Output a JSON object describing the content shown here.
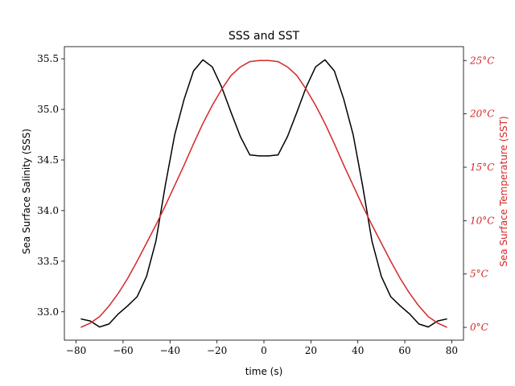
{
  "chart_data": {
    "type": "line",
    "title": "SSS and SST",
    "xlabel": "time (s)",
    "ylabel_left": "Sea Surface Salinity (SSS)",
    "ylabel_right": "Sea Surface Temperature (SST)",
    "xlim": [
      -85,
      85
    ],
    "ylim_left": [
      32.72,
      35.62
    ],
    "ylim_right": [
      -1.2,
      26.3
    ],
    "x_ticks": [
      -80,
      -60,
      -40,
      -20,
      0,
      20,
      40,
      60,
      80
    ],
    "x_tick_labels": [
      "−80",
      "−60",
      "−40",
      "−20",
      "0",
      "20",
      "40",
      "60",
      "80"
    ],
    "y_left_ticks": [
      33.0,
      33.5,
      34.0,
      34.5,
      35.0,
      35.5
    ],
    "y_left_tick_labels": [
      "33.0",
      "33.5",
      "34.0",
      "34.5",
      "35.0",
      "35.5"
    ],
    "y_right_ticks": [
      0,
      5,
      10,
      15,
      20,
      25
    ],
    "y_right_tick_labels": [
      "0°C",
      "5°C",
      "10°C",
      "15°C",
      "20°C",
      "25°C"
    ],
    "grid": false,
    "series": [
      {
        "axis": "left",
        "color": "#000000",
        "x": [
          -78,
          -74,
          -70,
          -66,
          -62,
          -58,
          -54,
          -50,
          -46,
          -42,
          -38,
          -34,
          -30,
          -26,
          -22,
          -18,
          -14,
          -10,
          -6,
          -2,
          2,
          6,
          10,
          14,
          18,
          22,
          26,
          30,
          34,
          38,
          42,
          46,
          50,
          54,
          58,
          62,
          66,
          70,
          74,
          78
        ],
        "values": [
          32.93,
          32.91,
          32.85,
          32.88,
          32.98,
          33.06,
          33.15,
          33.35,
          33.7,
          34.25,
          34.75,
          35.1,
          35.38,
          35.49,
          35.42,
          35.22,
          34.97,
          34.73,
          34.55,
          34.54,
          34.54,
          34.55,
          34.73,
          34.97,
          35.22,
          35.42,
          35.49,
          35.38,
          35.1,
          34.75,
          34.25,
          33.7,
          33.35,
          33.15,
          33.06,
          32.98,
          32.88,
          32.85,
          32.91,
          32.93
        ]
      },
      {
        "axis": "right",
        "color": "#d62728",
        "x": [
          -78,
          -74,
          -70,
          -66,
          -62,
          -58,
          -54,
          -50,
          -46,
          -42,
          -38,
          -34,
          -30,
          -26,
          -22,
          -18,
          -14,
          -10,
          -6,
          -2,
          2,
          6,
          10,
          14,
          18,
          22,
          26,
          30,
          34,
          38,
          42,
          46,
          50,
          54,
          58,
          62,
          66,
          70,
          74,
          78
        ],
        "values": [
          0.0,
          0.4,
          1.0,
          2.0,
          3.2,
          4.6,
          6.2,
          7.9,
          9.6,
          11.4,
          13.3,
          15.2,
          17.2,
          19.1,
          20.8,
          22.3,
          23.6,
          24.4,
          24.9,
          25.0,
          25.0,
          24.9,
          24.4,
          23.6,
          22.3,
          20.8,
          19.1,
          17.2,
          15.2,
          13.3,
          11.4,
          9.6,
          7.9,
          6.2,
          4.6,
          3.2,
          2.0,
          1.0,
          0.4,
          0.0
        ]
      }
    ]
  }
}
